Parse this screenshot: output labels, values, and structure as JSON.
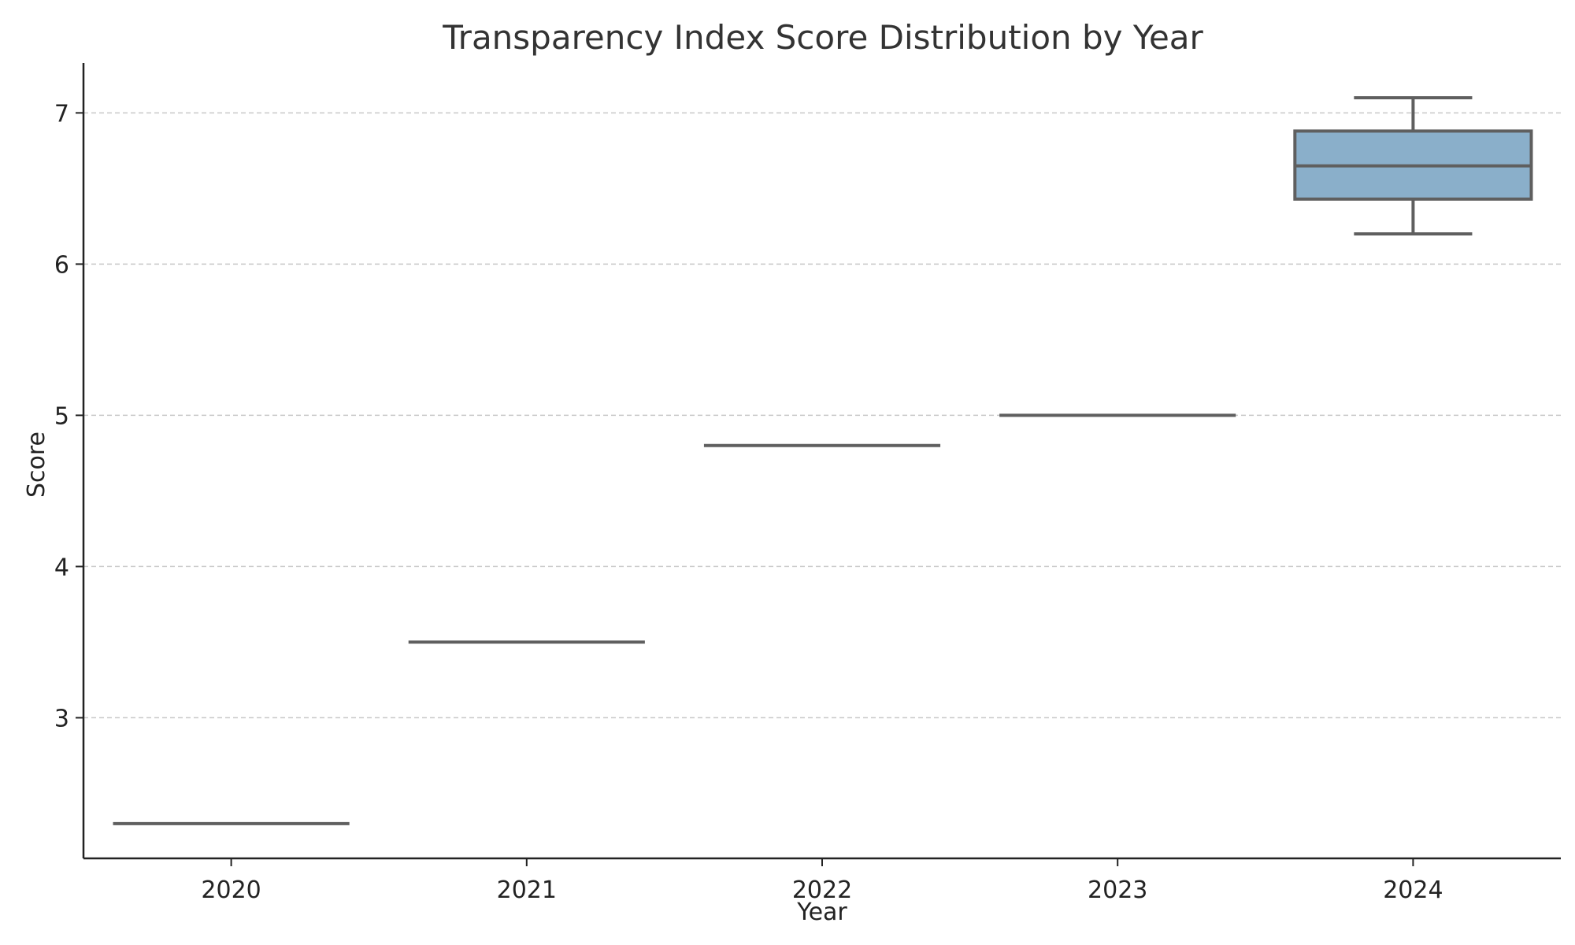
{
  "chart_data": {
    "type": "box",
    "title": "Transparency Index Score Distribution by Year",
    "xlabel": "Year",
    "ylabel": "Score",
    "categories": [
      "2020",
      "2021",
      "2022",
      "2023",
      "2024"
    ],
    "ylim": [
      2.07,
      7.33
    ],
    "yticks": [
      3,
      4,
      5,
      6,
      7
    ],
    "grid": "y-dashed",
    "box_color": "#8aafca",
    "line_color": "#5f5f5f",
    "boxes": [
      {
        "category": "2020",
        "min": 2.3,
        "q1": 2.3,
        "median": 2.3,
        "q3": 2.3,
        "max": 2.3
      },
      {
        "category": "2021",
        "min": 3.5,
        "q1": 3.5,
        "median": 3.5,
        "q3": 3.5,
        "max": 3.5
      },
      {
        "category": "2022",
        "min": 4.8,
        "q1": 4.8,
        "median": 4.8,
        "q3": 4.8,
        "max": 4.8
      },
      {
        "category": "2023",
        "min": 5.0,
        "q1": 5.0,
        "median": 5.0,
        "q3": 5.0,
        "max": 5.0
      },
      {
        "category": "2024",
        "min": 6.2,
        "q1": 6.43,
        "median": 6.65,
        "q3": 6.88,
        "max": 7.1
      }
    ]
  }
}
